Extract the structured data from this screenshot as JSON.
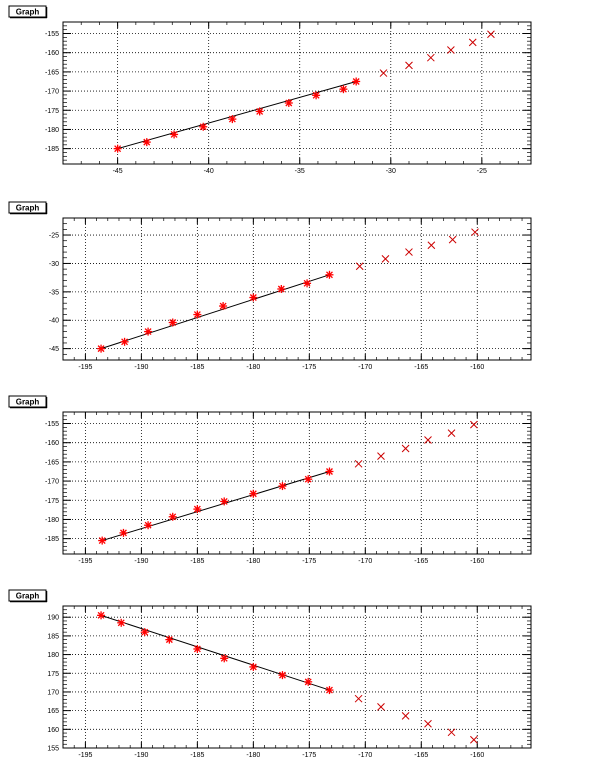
{
  "chart_data": [
    {
      "type": "scatter",
      "title": "Graph",
      "xlabel": "",
      "ylabel": "",
      "xlim": [
        -48,
        -22.3
      ],
      "ylim": [
        -189,
        -152
      ],
      "xticks": [
        -45,
        -40,
        -35,
        -30,
        -25
      ],
      "yticks": [
        -155,
        -160,
        -165,
        -170,
        -175,
        -180,
        -185
      ],
      "grid": true,
      "series": [
        {
          "marker": "star",
          "color": "#ff0000",
          "x": [
            -45,
            -43.4,
            -41.9,
            -40.3,
            -38.7,
            -37.2,
            -35.6,
            -34.1,
            -32.6,
            -31.9
          ],
          "y": [
            -185,
            -183.3,
            -181.3,
            -179.3,
            -177.3,
            -175.3,
            -173.1,
            -171.1,
            -169.5,
            -167.5
          ]
        },
        {
          "marker": "cross",
          "color": "#cc0000",
          "x": [
            -30.4,
            -29.0,
            -27.8,
            -26.7,
            -25.5,
            -24.5
          ],
          "y": [
            -165.3,
            -163.3,
            -161.3,
            -159.3,
            -157.3,
            -155.2
          ]
        }
      ],
      "fit": {
        "x": [
          -45,
          -31.9
        ],
        "y": [
          -185,
          -167.5
        ]
      }
    },
    {
      "type": "scatter",
      "title": "Graph",
      "xlabel": "",
      "ylabel": "",
      "xlim": [
        -197,
        -155.2
      ],
      "ylim": [
        -47,
        -22
      ],
      "xticks": [
        -195,
        -190,
        -185,
        -180,
        -175,
        -170,
        -165,
        -160
      ],
      "yticks": [
        -25,
        -30,
        -35,
        -40,
        -45
      ],
      "grid": true,
      "series": [
        {
          "marker": "star",
          "color": "#ff0000",
          "x": [
            -193.6,
            -191.5,
            -189.4,
            -187.2,
            -185,
            -182.7,
            -180,
            -177.5,
            -175.2,
            -173.2
          ],
          "y": [
            -45,
            -43.8,
            -42,
            -40.4,
            -39,
            -37.5,
            -36,
            -34.5,
            -33.5,
            -32
          ]
        },
        {
          "marker": "cross",
          "color": "#cc0000",
          "x": [
            -170.5,
            -168.2,
            -166.1,
            -164.1,
            -162.2,
            -160.2
          ],
          "y": [
            -30.5,
            -29.2,
            -28,
            -26.8,
            -25.8,
            -24.5
          ]
        }
      ],
      "fit": {
        "x": [
          -193.6,
          -173.2
        ],
        "y": [
          -45,
          -32
        ]
      }
    },
    {
      "type": "scatter",
      "title": "Graph",
      "xlabel": "",
      "ylabel": "",
      "xlim": [
        -197,
        -155.2
      ],
      "ylim": [
        -189,
        -152
      ],
      "xticks": [
        -195,
        -190,
        -185,
        -180,
        -175,
        -170,
        -165,
        -160
      ],
      "yticks": [
        -155,
        -160,
        -165,
        -170,
        -175,
        -180,
        -185
      ],
      "grid": true,
      "series": [
        {
          "marker": "star",
          "color": "#ff0000",
          "x": [
            -193.5,
            -191.6,
            -189.4,
            -187.2,
            -185,
            -182.6,
            -180,
            -177.4,
            -175.1,
            -173.2
          ],
          "y": [
            -185.5,
            -183.5,
            -181.5,
            -179.3,
            -177.3,
            -175.3,
            -173.3,
            -171.3,
            -169.5,
            -167.5
          ]
        },
        {
          "marker": "cross",
          "color": "#cc0000",
          "x": [
            -170.6,
            -168.6,
            -166.4,
            -164.4,
            -162.3,
            -160.3
          ],
          "y": [
            -165.5,
            -163.5,
            -161.5,
            -159.3,
            -157.5,
            -155.3
          ]
        }
      ],
      "fit": {
        "x": [
          -193.5,
          -173.2
        ],
        "y": [
          -185.5,
          -167.5
        ]
      }
    },
    {
      "type": "scatter",
      "title": "Graph",
      "xlabel": "",
      "ylabel": "",
      "xlim": [
        -197,
        -155.2
      ],
      "ylim": [
        155,
        193
      ],
      "xticks": [
        -195,
        -190,
        -185,
        -180,
        -175,
        -170,
        -165,
        -160
      ],
      "yticks": [
        190,
        185,
        180,
        175,
        170,
        165,
        160,
        155
      ],
      "grid": true,
      "series": [
        {
          "marker": "star",
          "color": "#ff0000",
          "x": [
            -193.6,
            -191.8,
            -189.7,
            -187.5,
            -185,
            -182.6,
            -180,
            -177.4,
            -175.1,
            -173.2
          ],
          "y": [
            190.5,
            188.5,
            186,
            184,
            181.5,
            179,
            176.7,
            174.5,
            172.7,
            170.5
          ]
        },
        {
          "marker": "cross",
          "color": "#cc0000",
          "x": [
            -170.6,
            -168.6,
            -166.4,
            -164.4,
            -162.3,
            -160.3
          ],
          "y": [
            168.2,
            166,
            163.6,
            161.5,
            159.2,
            157.2
          ]
        }
      ],
      "fit": {
        "x": [
          -193.6,
          -173.2
        ],
        "y": [
          190.5,
          170.5
        ]
      }
    }
  ]
}
